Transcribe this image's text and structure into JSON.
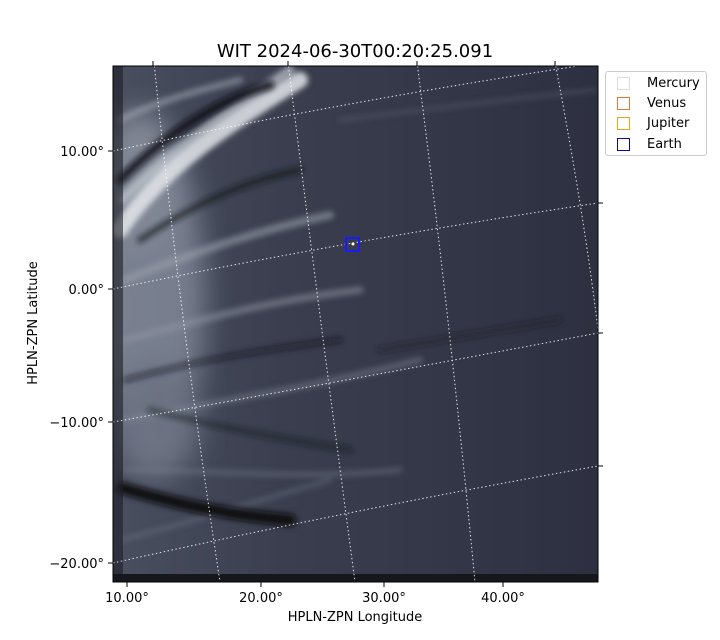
{
  "chart_data": {
    "type": "image",
    "title": "WIT 2024-06-30T00:20:25.091",
    "xlabel": "HPLN-ZPN Longitude",
    "ylabel": "HPLN-ZPN Latitude",
    "x_ticks": [
      "10.00°",
      "20.00°",
      "30.00°",
      "40.00°"
    ],
    "y_ticks": [
      "10.00°",
      "0.00°",
      "−10.00°",
      "−20.00°"
    ],
    "grid": true,
    "colormap": "bone",
    "legend_placement": "outside-right",
    "legend": [
      {
        "name": "Mercury",
        "color": "#dddddd"
      },
      {
        "name": "Venus",
        "color": "#e07b39"
      },
      {
        "name": "Jupiter",
        "color": "#e6a817"
      },
      {
        "name": "Earth",
        "color": "#0b0b8c"
      }
    ],
    "markers": [
      {
        "name": "Earth",
        "lon": 27.5,
        "lat": 3.2,
        "color": "#1a1aff"
      }
    ]
  }
}
